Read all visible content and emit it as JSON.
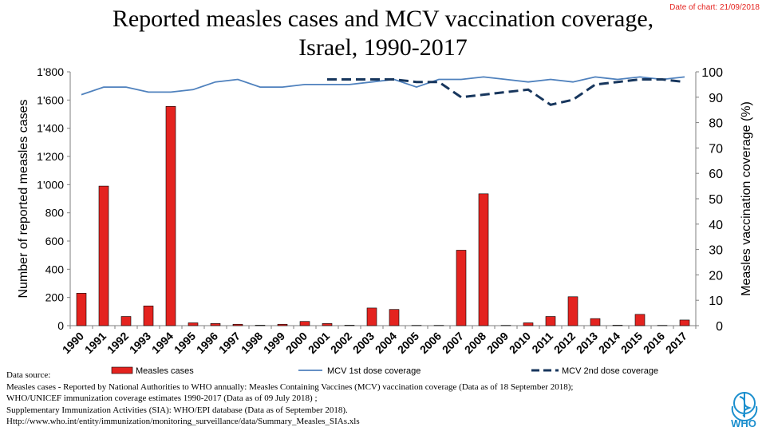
{
  "date_note": "Date of chart: 21/09/2018",
  "title_lines": [
    "Reported measles cases and MCV vaccination coverage,",
    "Israel, 1990-2017"
  ],
  "source_lines": [
    "Data source:",
    "Measles cases - Reported by National Authorities to WHO annually: Measles Containing Vaccines (MCV) vaccination coverage (Data as of 18 September 2018);",
    "WHO/UNICEF immunization coverage estimates 1990-2017 (Data as of 09 July 2018) ;",
    "Supplementary Immunization Activities (SIA): WHO/EPI database (Data as of September 2018).",
    "Http://www.who.int/entity/immunization/monitoring_surveillance/data/Summary_Measles_SIAs.xls"
  ],
  "logo_text": "WHO",
  "chart_data": {
    "type": "bar",
    "categories": [
      "1990",
      "1991",
      "1992",
      "1993",
      "1994",
      "1995",
      "1996",
      "1997",
      "1998",
      "1999",
      "2000",
      "2001",
      "2002",
      "2003",
      "2004",
      "2005",
      "2006",
      "2007",
      "2008",
      "2009",
      "2010",
      "2011",
      "2012",
      "2013",
      "2014",
      "2015",
      "2016",
      "2017"
    ],
    "series": [
      {
        "name": "Measles cases",
        "type": "bar",
        "axis": "left",
        "color": "#e4231f",
        "values": [
          230,
          990,
          65,
          140,
          1555,
          20,
          15,
          10,
          3,
          10,
          30,
          15,
          3,
          125,
          115,
          2,
          2,
          535,
          935,
          2,
          20,
          65,
          205,
          50,
          3,
          80,
          2,
          40
        ]
      },
      {
        "name": "MCV 1st dose coverage",
        "type": "line",
        "axis": "right",
        "color": "#4f81bd",
        "dash": "solid",
        "values": [
          91,
          94,
          94,
          92,
          92,
          93,
          96,
          97,
          94,
          94,
          95,
          95,
          95,
          96,
          97,
          94,
          97,
          97,
          98,
          97,
          96,
          97,
          96,
          98,
          97,
          98,
          97,
          98
        ]
      },
      {
        "name": "MCV 2nd dose coverage",
        "type": "line",
        "axis": "right",
        "color": "#17365d",
        "dash": "dashed",
        "values": [
          null,
          null,
          null,
          null,
          null,
          null,
          null,
          null,
          null,
          null,
          null,
          97,
          97,
          97,
          97,
          96,
          96,
          90,
          91,
          92,
          93,
          87,
          89,
          95,
          96,
          97,
          97,
          96
        ]
      }
    ],
    "y_left": {
      "label": "Number of reported measles cases",
      "lim": [
        0,
        1800
      ],
      "ticks": [
        0,
        200,
        400,
        600,
        800,
        1000,
        1200,
        1400,
        1600,
        1800
      ],
      "tick_labels": [
        "0",
        "200",
        "400",
        "600",
        "800",
        "1'000",
        "1'200",
        "1'400",
        "1'600",
        "1'800"
      ]
    },
    "y_right": {
      "label": "Measles vaccination coverage (%)",
      "lim": [
        0,
        100
      ],
      "ticks": [
        0,
        10,
        20,
        30,
        40,
        50,
        60,
        70,
        80,
        90,
        100
      ],
      "tick_labels": [
        "0",
        "10",
        "20",
        "30",
        "40",
        "50",
        "60",
        "70",
        "80",
        "90",
        "100"
      ]
    },
    "legend": {
      "position": "bottom",
      "entries": [
        "Measles cases",
        "MCV 1st dose coverage",
        "MCV 2nd dose coverage"
      ]
    }
  }
}
